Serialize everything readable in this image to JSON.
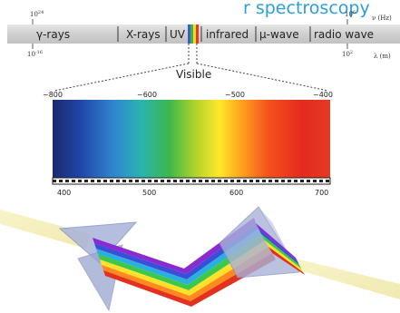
{
  "title_fragment": "r spectroscopy",
  "spectrum_bar": {
    "bands": [
      "γ-rays",
      "X-rays",
      "UV",
      "infrared",
      "μ-wave",
      "radio wave"
    ],
    "freq_left": "10",
    "freq_left_exp": "24",
    "freq_right": "10",
    "freq_right_exp": "6",
    "freq_unit": "ν (Hz)",
    "wl_left": "10",
    "wl_left_exp": "-16",
    "wl_right": "10",
    "wl_right_exp": "2",
    "wl_unit": "λ (m)"
  },
  "visible_label": "Visible",
  "top_scale": [
    "~800",
    "~600",
    "~500",
    "~400"
  ],
  "bottom_scale": [
    "400",
    "500",
    "600",
    "700"
  ],
  "colors": {
    "title_blue": "#2a9fd8",
    "bar_gray": "#d4d4d4",
    "prism_fill": "#a9b3d9"
  }
}
